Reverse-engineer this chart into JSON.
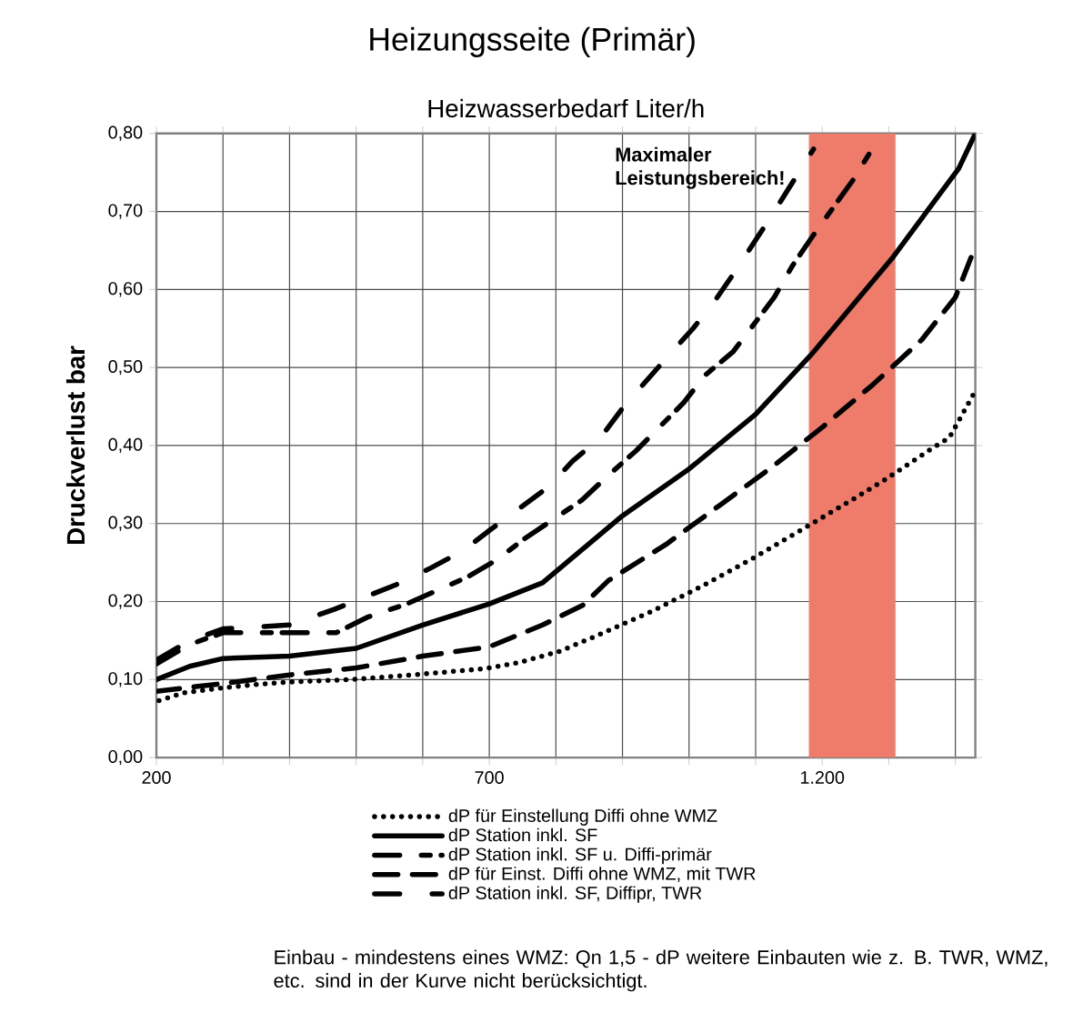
{
  "chart_data": {
    "type": "line",
    "title": "Heizungsseite (Primär)",
    "subtitle": "Heizwasserbedarf Liter/h",
    "ylabel": "Druckverlust bar",
    "xlim": [
      200,
      1430
    ],
    "ylim": [
      0,
      0.8
    ],
    "xticks": [
      {
        "value": 200,
        "label": "200"
      },
      {
        "value": 300,
        "label": null
      },
      {
        "value": 400,
        "label": null
      },
      {
        "value": 500,
        "label": null
      },
      {
        "value": 600,
        "label": null
      },
      {
        "value": 700,
        "label": "700"
      },
      {
        "value": 800,
        "label": null
      },
      {
        "value": 900,
        "label": null
      },
      {
        "value": 1000,
        "label": null
      },
      {
        "value": 1100,
        "label": null
      },
      {
        "value": 1200,
        "label": "1.200"
      },
      {
        "value": 1300,
        "label": null
      },
      {
        "value": 1400,
        "label": null
      }
    ],
    "yticks": [
      {
        "value": 0,
        "label": "0,00"
      },
      {
        "value": 0.1,
        "label": "0,10"
      },
      {
        "value": 0.2,
        "label": "0,20"
      },
      {
        "value": 0.3,
        "label": "0,30"
      },
      {
        "value": 0.4,
        "label": "0,40"
      },
      {
        "value": 0.5,
        "label": "0,50"
      },
      {
        "value": 0.6,
        "label": "0,60"
      },
      {
        "value": 0.7,
        "label": "0,70"
      },
      {
        "value": 0.8,
        "label": "0,80"
      }
    ],
    "grid": true,
    "legend": "bottom",
    "bands": [
      {
        "axis": "x",
        "from": 1180,
        "to": 1310,
        "label": "Maximaler Leistungsbereich!",
        "color": "#ef7b6b"
      }
    ],
    "annotations": [
      "Einbau - mindestens eines WMZ: Qn 1,5 - dP weitere Einbauten wie z. B. TWR, WMZ, etc. sind in der Kurve nicht berücksichtigt."
    ],
    "series": [
      {
        "name": "dP für Einstellung Diffi ohne WMZ",
        "color": "#000000",
        "line_style": "dotted",
        "x": [
          204,
          241,
          295,
          354,
          403,
          494,
          585,
          694,
          745,
          805,
          858,
          943,
          1020,
          1097,
          1171,
          1246,
          1294,
          1366,
          1391,
          1430
        ],
        "values": [
          0.073,
          0.083,
          0.089,
          0.094,
          0.097,
          0.1,
          0.106,
          0.114,
          0.122,
          0.136,
          0.155,
          0.187,
          0.22,
          0.256,
          0.293,
          0.331,
          0.356,
          0.397,
          0.41,
          0.47
        ]
      },
      {
        "name": "dP Station inkl. SF",
        "color": "#000000",
        "line_style": "solid",
        "x": [
          200,
          250,
          300,
          400,
          500,
          600,
          700,
          780,
          900,
          1000,
          1100,
          1183,
          1305,
          1405,
          1430
        ],
        "values": [
          0.1,
          0.117,
          0.127,
          0.13,
          0.14,
          0.17,
          0.197,
          0.224,
          0.31,
          0.37,
          0.44,
          0.516,
          0.64,
          0.755,
          0.8
        ]
      },
      {
        "name": "dP Station inkl. SF u. Diffi-primär",
        "color": "#000000",
        "line_style": "dashdot",
        "x": [
          200,
          250,
          300,
          350,
          470,
          517,
          576,
          666,
          712,
          752,
          839,
          879,
          920,
          992,
          1024,
          1066,
          1128,
          1155,
          1187,
          1246,
          1275
        ],
        "values": [
          0.12,
          0.145,
          0.16,
          0.16,
          0.16,
          0.18,
          0.197,
          0.231,
          0.254,
          0.28,
          0.33,
          0.362,
          0.393,
          0.455,
          0.49,
          0.52,
          0.59,
          0.63,
          0.67,
          0.74,
          0.78
        ]
      },
      {
        "name": "dP für Einst. Diffi ohne WMZ, mit TWR",
        "color": "#000000",
        "line_style": "dashed",
        "x": [
          200,
          300,
          400,
          500,
          600,
          700,
          780,
          840,
          879,
          965,
          1047,
          1124,
          1201,
          1276,
          1350,
          1400,
          1430
        ],
        "values": [
          0.085,
          0.095,
          0.106,
          0.115,
          0.13,
          0.142,
          0.17,
          0.195,
          0.227,
          0.273,
          0.324,
          0.372,
          0.424,
          0.478,
          0.536,
          0.59,
          0.655
        ]
      },
      {
        "name": "dP Station inkl. SF, Diffipr, TWR",
        "color": "#000000",
        "line_style": "dashdotdot",
        "x": [
          200,
          250,
          300,
          400,
          467,
          567,
          612,
          662,
          703,
          789,
          825,
          867,
          902,
          970,
          1006,
          1040,
          1070,
          1128,
          1187
        ],
        "values": [
          0.125,
          0.15,
          0.165,
          0.17,
          0.19,
          0.224,
          0.243,
          0.266,
          0.293,
          0.347,
          0.38,
          0.41,
          0.45,
          0.516,
          0.55,
          0.587,
          0.624,
          0.7,
          0.78
        ]
      }
    ]
  }
}
